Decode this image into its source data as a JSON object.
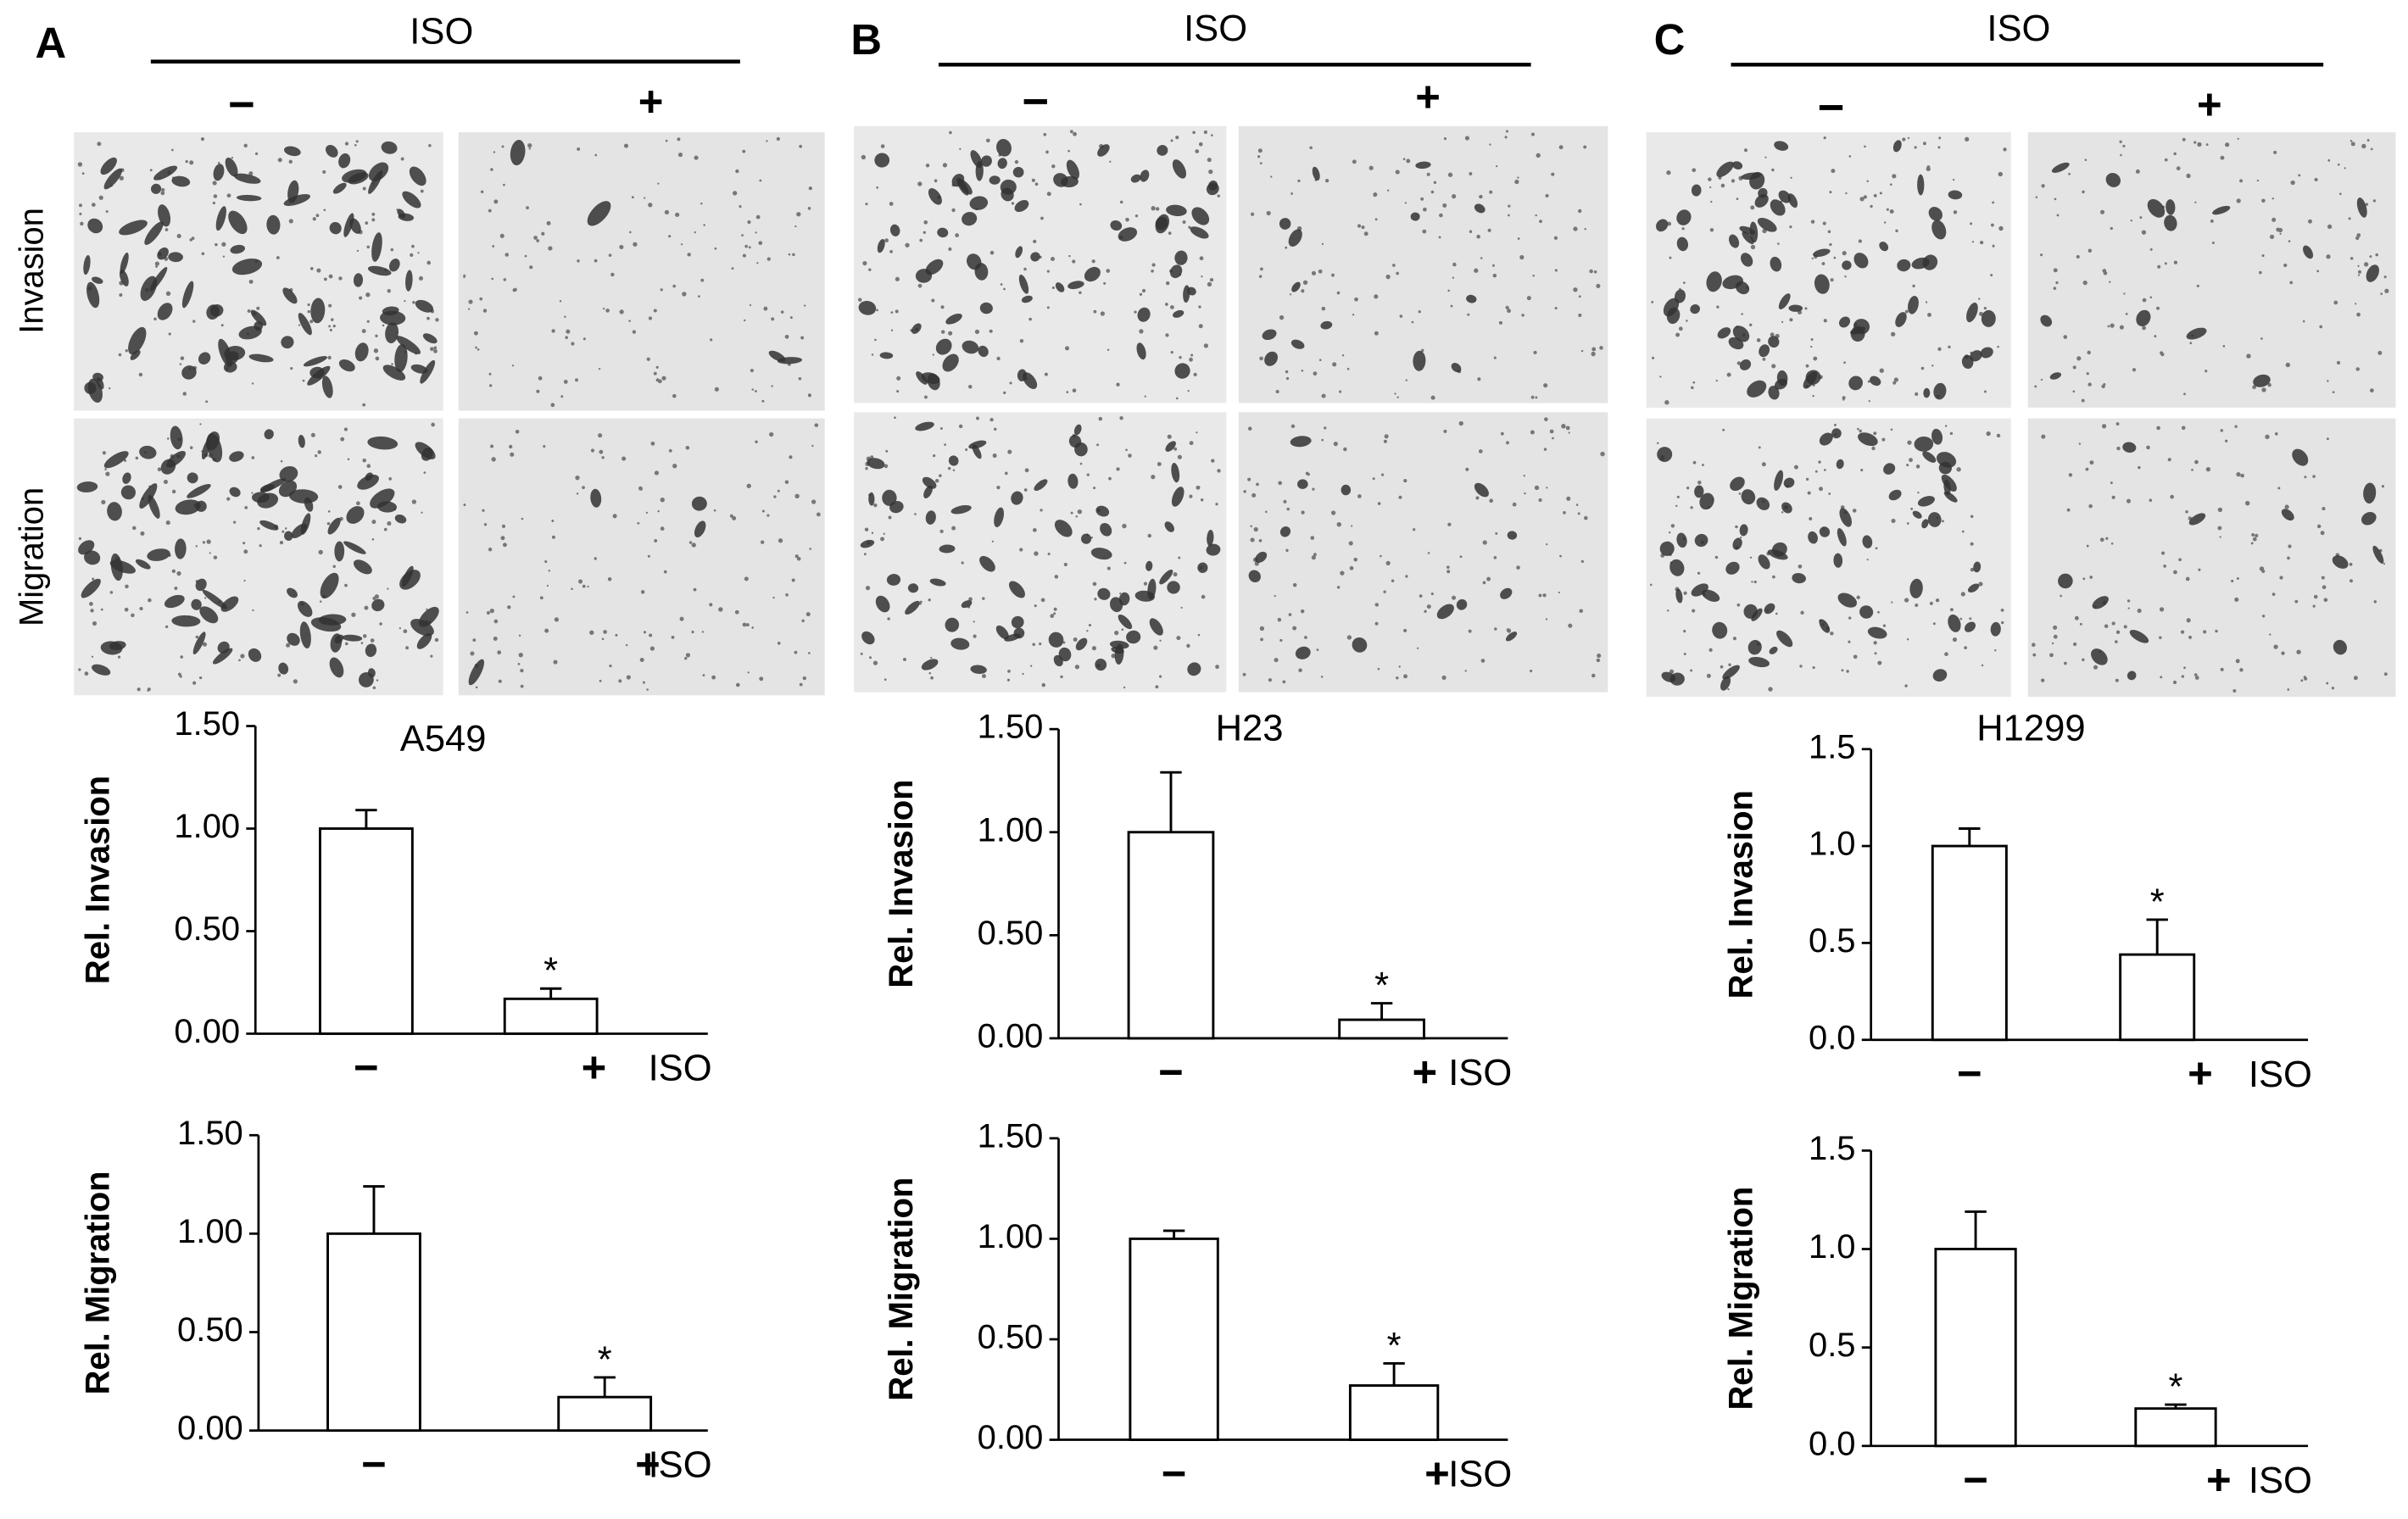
{
  "panels": [
    {
      "label": "A",
      "treatment": "ISO",
      "minus": "−",
      "plus": "+"
    },
    {
      "label": "B",
      "treatment": "ISO",
      "minus": "−",
      "plus": "+"
    },
    {
      "label": "C",
      "treatment": "ISO",
      "minus": "−",
      "plus": "+"
    }
  ],
  "row_labels": [
    "Invasion",
    "Migration"
  ],
  "chart_data": [
    {
      "type": "bar",
      "title": "A549",
      "ylabel": "Rel. Invasion",
      "xlabel": "ISO",
      "categories": [
        "−",
        "+"
      ],
      "values": [
        1.0,
        0.17
      ],
      "errors": [
        0.09,
        0.05
      ],
      "significance": [
        null,
        "*"
      ],
      "ylim": [
        0,
        1.5
      ],
      "yticks": [
        {
          "value": 0,
          "label": "0.00"
        },
        {
          "value": 0.5,
          "label": "0.50"
        },
        {
          "value": 1,
          "label": "1.00"
        },
        {
          "value": 1.5,
          "label": "1.50"
        }
      ]
    },
    {
      "type": "bar",
      "ylabel": "Rel. Migration",
      "xlabel": "ISO",
      "categories": [
        "−",
        "+"
      ],
      "values": [
        1.0,
        0.17
      ],
      "errors": [
        0.24,
        0.1
      ],
      "significance": [
        null,
        "*"
      ],
      "ylim": [
        0,
        1.5
      ],
      "yticks": [
        {
          "value": 0,
          "label": "0.00"
        },
        {
          "value": 0.5,
          "label": "0.50"
        },
        {
          "value": 1,
          "label": "1.00"
        },
        {
          "value": 1.5,
          "label": "1.50"
        }
      ]
    },
    {
      "type": "bar",
      "title": "H23",
      "ylabel": "Rel. Invasion",
      "xlabel": "ISO",
      "categories": [
        "−",
        "+"
      ],
      "values": [
        1.0,
        0.09
      ],
      "errors": [
        0.29,
        0.08
      ],
      "significance": [
        null,
        "*"
      ],
      "ylim": [
        0,
        1.5
      ],
      "yticks": [
        {
          "value": 0,
          "label": "0.00"
        },
        {
          "value": 0.5,
          "label": "0.50"
        },
        {
          "value": 1,
          "label": "1.00"
        },
        {
          "value": 1.5,
          "label": "1.50"
        }
      ]
    },
    {
      "type": "bar",
      "ylabel": "Rel. Migration",
      "xlabel": "ISO",
      "categories": [
        "−",
        "+"
      ],
      "values": [
        1.0,
        0.27
      ],
      "errors": [
        0.04,
        0.11
      ],
      "significance": [
        null,
        "*"
      ],
      "ylim": [
        0,
        1.5
      ],
      "yticks": [
        {
          "value": 0,
          "label": "0.00"
        },
        {
          "value": 0.5,
          "label": "0.50"
        },
        {
          "value": 1,
          "label": "1.00"
        },
        {
          "value": 1.5,
          "label": "1.50"
        }
      ]
    },
    {
      "type": "bar",
      "title": "H1299",
      "ylabel": "Rel. Invasion",
      "xlabel": "ISO",
      "categories": [
        "−",
        "+"
      ],
      "values": [
        1.0,
        0.44
      ],
      "errors": [
        0.09,
        0.18
      ],
      "significance": [
        null,
        "*"
      ],
      "ylim": [
        0,
        1.5
      ],
      "yticks": [
        {
          "value": 0,
          "label": "0.0"
        },
        0.5,
        {
          "value": 1,
          "label": "1.0"
        },
        1.5
      ]
    },
    {
      "type": "bar",
      "ylabel": "Rel. Migration",
      "xlabel": "ISO",
      "categories": [
        "−",
        "+"
      ],
      "values": [
        1.0,
        0.19
      ],
      "errors": [
        0.19,
        0.02
      ],
      "significance": [
        null,
        "*"
      ],
      "ylim": [
        0,
        1.5
      ],
      "yticks": [
        {
          "value": 0,
          "label": "0.0"
        },
        0.5,
        {
          "value": 1,
          "label": "1.0"
        },
        1.5
      ]
    }
  ]
}
